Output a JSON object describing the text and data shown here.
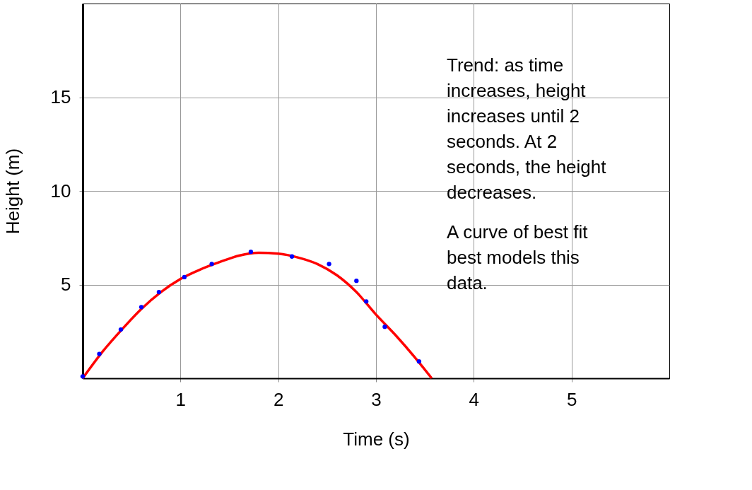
{
  "chart_data": {
    "type": "scatter",
    "xlabel": "Time (s)",
    "ylabel": "Height (m)",
    "xlim": [
      0,
      6
    ],
    "ylim": [
      0,
      20
    ],
    "xticks": [
      1,
      2,
      3,
      4,
      5
    ],
    "yticks": [
      5,
      10,
      15
    ],
    "grid": true,
    "marker": "circle",
    "series": [
      {
        "type": "line",
        "marker": "none",
        "color": "#ff0000",
        "x": [
          0,
          0.2,
          0.4,
          0.6,
          0.8,
          1.0,
          1.2,
          1.4,
          1.6,
          1.8,
          2.0,
          2.2,
          2.4,
          2.6,
          2.8,
          3.0,
          3.2,
          3.4,
          3.57
        ],
        "values": [
          0,
          1.4,
          2.6,
          3.7,
          4.6,
          5.3,
          5.8,
          6.2,
          6.55,
          6.7,
          6.65,
          6.45,
          6.1,
          5.5,
          4.6,
          3.4,
          2.3,
          1.1,
          0
        ]
      },
      {
        "color": "#0000ff",
        "x": [
          0,
          0.17,
          0.39,
          0.6,
          0.78,
          1.04,
          1.32,
          1.72,
          2.14,
          2.52,
          2.8,
          2.9,
          3.09,
          3.44
        ],
        "values": [
          0.1,
          1.3,
          2.6,
          3.8,
          4.6,
          5.4,
          6.1,
          6.75,
          6.5,
          6.1,
          5.2,
          4.1,
          2.75,
          0.9
        ]
      }
    ],
    "annotations": [
      "Trend: as time increases, height increases until 2 seconds.  At 2 seconds, the height decreases.",
      "A curve of best fit best models this data."
    ]
  }
}
